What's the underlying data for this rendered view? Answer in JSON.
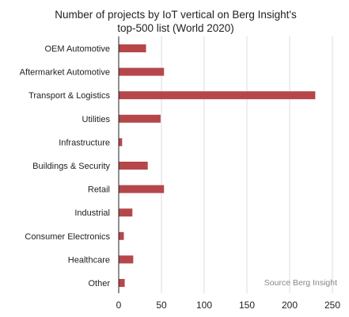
{
  "chart_data": {
    "type": "bar",
    "orientation": "horizontal",
    "title_lines": [
      "Number of projects by IoT vertical on Berg Insight's",
      "top-500 list (World 2020)"
    ],
    "categories": [
      "OEM Automotive",
      "Aftermarket Automotive",
      "Transport & Logistics",
      "Utilities",
      "Infrastructure",
      "Buildings & Security",
      "Retail",
      "Industrial",
      "Consumer Electronics",
      "Healthcare",
      "Other"
    ],
    "values": [
      32,
      53,
      230,
      49,
      4,
      34,
      53,
      16,
      6,
      17,
      7
    ],
    "xlim": [
      0,
      250
    ],
    "xticks": [
      "0",
      "50",
      "100",
      "150",
      "200",
      "250"
    ],
    "grid": true,
    "bar_color": "#b5474b",
    "source": "Source Berg Insight"
  }
}
